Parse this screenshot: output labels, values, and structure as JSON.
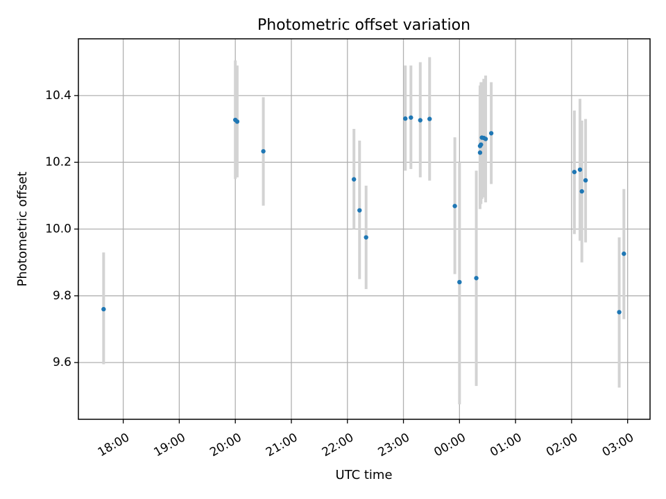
{
  "chart_data": {
    "type": "scatter",
    "title": "Photometric offset variation",
    "xlabel": "UTC time",
    "ylabel": "Photometric offset",
    "xlim": [
      "2024-01-01T17:12",
      "2024-01-02T03:24"
    ],
    "ylim": [
      9.43,
      10.57
    ],
    "grid": true,
    "x_ticks": [
      {
        "x": "2024-01-01T18:00",
        "label": "18:00"
      },
      {
        "x": "2024-01-01T19:00",
        "label": "19:00"
      },
      {
        "x": "2024-01-01T20:00",
        "label": "20:00"
      },
      {
        "x": "2024-01-01T21:00",
        "label": "21:00"
      },
      {
        "x": "2024-01-01T22:00",
        "label": "22:00"
      },
      {
        "x": "2024-01-01T23:00",
        "label": "23:00"
      },
      {
        "x": "2024-01-02T00:00",
        "label": "00:00"
      },
      {
        "x": "2024-01-02T01:00",
        "label": "01:00"
      },
      {
        "x": "2024-01-02T02:00",
        "label": "02:00"
      },
      {
        "x": "2024-01-02T03:00",
        "label": "03:00"
      }
    ],
    "y_ticks": [
      {
        "y": 9.6,
        "label": "9.6"
      },
      {
        "y": 9.8,
        "label": "9.8"
      },
      {
        "y": 10.0,
        "label": "10.0"
      },
      {
        "y": 10.2,
        "label": "10.2"
      },
      {
        "y": 10.4,
        "label": "10.4"
      }
    ],
    "points": [
      {
        "x": "2024-01-01T17:39",
        "y": 9.76,
        "lo": 9.595,
        "hi": 9.93
      },
      {
        "x": "2024-01-01T20:00",
        "y": 10.327,
        "lo": 10.15,
        "hi": 10.505
      },
      {
        "x": "2024-01-01T20:02",
        "y": 10.322,
        "lo": 10.155,
        "hi": 10.49
      },
      {
        "x": "2024-01-01T20:30",
        "y": 10.233,
        "lo": 10.07,
        "hi": 10.395
      },
      {
        "x": "2024-01-01T22:07",
        "y": 10.149,
        "lo": 10.0,
        "hi": 10.3
      },
      {
        "x": "2024-01-01T22:13",
        "y": 10.056,
        "lo": 9.85,
        "hi": 10.265
      },
      {
        "x": "2024-01-01T22:20",
        "y": 9.975,
        "lo": 9.82,
        "hi": 10.13
      },
      {
        "x": "2024-01-01T23:02",
        "y": 10.331,
        "lo": 10.175,
        "hi": 10.49
      },
      {
        "x": "2024-01-01T23:08",
        "y": 10.334,
        "lo": 10.18,
        "hi": 10.49
      },
      {
        "x": "2024-01-01T23:18",
        "y": 10.326,
        "lo": 10.155,
        "hi": 10.5
      },
      {
        "x": "2024-01-01T23:28",
        "y": 10.33,
        "lo": 10.145,
        "hi": 10.515
      },
      {
        "x": "2024-01-01T23:55",
        "y": 10.069,
        "lo": 9.865,
        "hi": 10.275
      },
      {
        "x": "2024-01-02T00:00",
        "y": 9.841,
        "lo": 9.475,
        "hi": 10.2
      },
      {
        "x": "2024-01-02T00:18",
        "y": 9.853,
        "lo": 9.53,
        "hi": 10.175
      },
      {
        "x": "2024-01-02T00:22",
        "y": 10.229,
        "lo": 10.06,
        "hi": 10.42
      },
      {
        "x": "2024-01-02T00:22",
        "y": 10.249,
        "lo": 10.07,
        "hi": 10.43
      },
      {
        "x": "2024-01-02T00:23",
        "y": 10.253,
        "lo": 10.075,
        "hi": 10.44
      },
      {
        "x": "2024-01-02T00:24",
        "y": 10.274,
        "lo": 10.09,
        "hi": 10.44
      },
      {
        "x": "2024-01-02T00:26",
        "y": 10.273,
        "lo": 10.095,
        "hi": 10.45
      },
      {
        "x": "2024-01-02T00:28",
        "y": 10.27,
        "lo": 10.08,
        "hi": 10.46
      },
      {
        "x": "2024-01-02T00:34",
        "y": 10.287,
        "lo": 10.135,
        "hi": 10.44
      },
      {
        "x": "2024-01-02T02:03",
        "y": 10.171,
        "lo": 9.985,
        "hi": 10.355
      },
      {
        "x": "2024-01-02T02:09",
        "y": 10.178,
        "lo": 9.965,
        "hi": 10.39
      },
      {
        "x": "2024-01-02T02:11",
        "y": 10.113,
        "lo": 9.9,
        "hi": 10.325
      },
      {
        "x": "2024-01-02T02:15",
        "y": 10.146,
        "lo": 9.96,
        "hi": 10.33
      },
      {
        "x": "2024-01-02T02:51",
        "y": 9.751,
        "lo": 9.525,
        "hi": 9.975
      },
      {
        "x": "2024-01-02T02:56",
        "y": 9.926,
        "lo": 9.73,
        "hi": 10.12
      }
    ],
    "colors": {
      "marker": "#1f77b4",
      "errorbar": "#d3d3d3",
      "grid": "#b0b0b0",
      "frame": "#000000"
    }
  }
}
